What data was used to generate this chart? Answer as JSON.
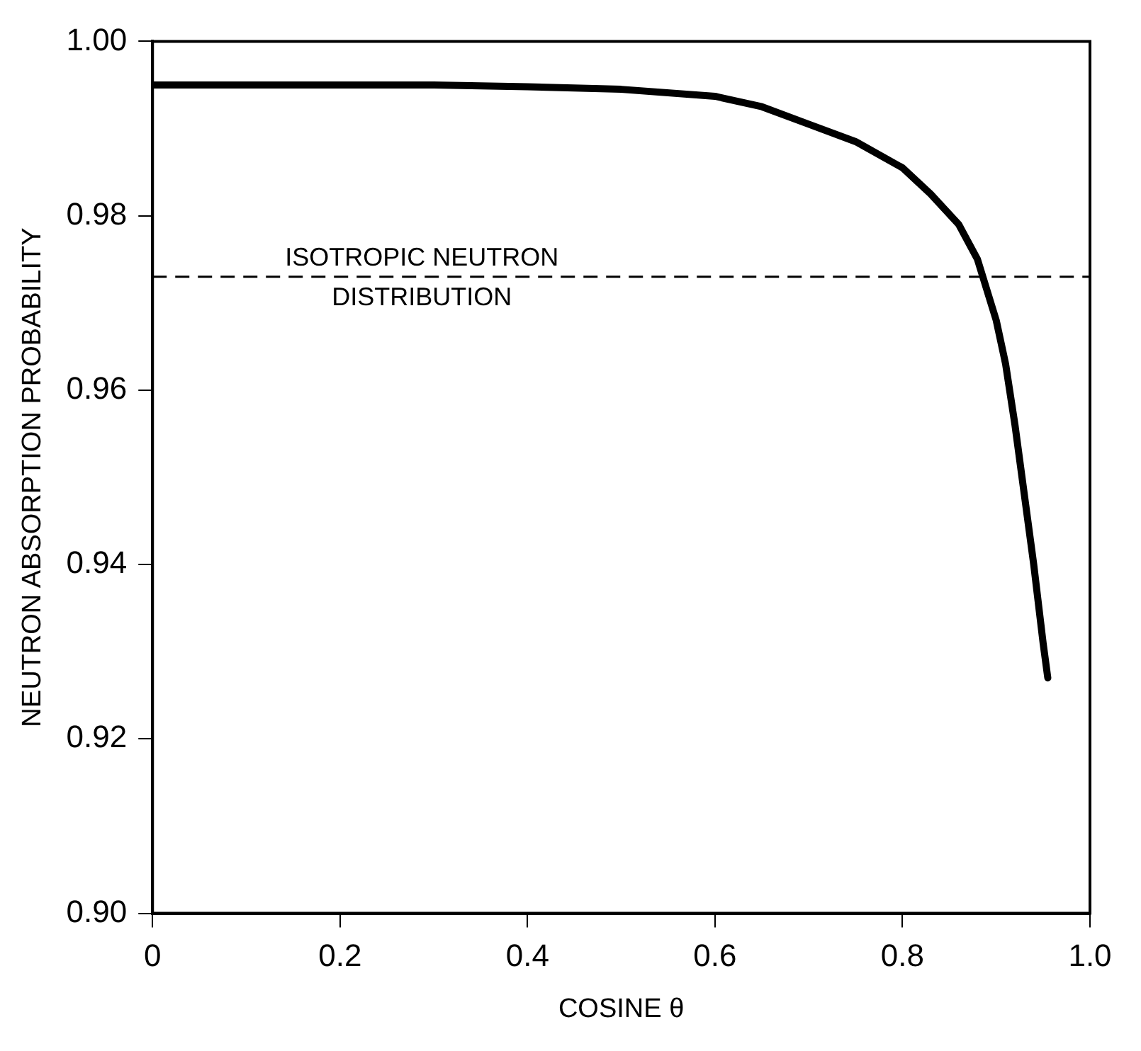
{
  "chart_data": {
    "type": "line",
    "xlabel": "COSINE θ",
    "ylabel": "NEUTRON ABSORPTION PROBABILITY",
    "x": [
      0,
      0.1,
      0.2,
      0.3,
      0.4,
      0.5,
      0.6,
      0.65,
      0.7,
      0.75,
      0.8,
      0.83,
      0.86,
      0.88,
      0.9,
      0.91,
      0.92,
      0.93,
      0.94,
      0.95,
      0.955
    ],
    "series": [
      {
        "color": "#000000",
        "values": [
          0.995,
          0.995,
          0.995,
          0.995,
          0.9948,
          0.9945,
          0.9937,
          0.9925,
          0.9905,
          0.9885,
          0.9855,
          0.9825,
          0.979,
          0.975,
          0.968,
          0.963,
          0.956,
          0.948,
          0.94,
          0.931,
          0.927
        ]
      }
    ],
    "xlim": [
      0,
      1
    ],
    "ylim": [
      0.9,
      1
    ],
    "xticks": [
      {
        "value": 0,
        "label": "0"
      },
      0.2,
      0.4,
      0.6,
      0.8,
      {
        "value": 1,
        "label": "1.0"
      }
    ],
    "yticks": [
      {
        "value": 0.9,
        "label": "0.90"
      },
      {
        "value": 0.92,
        "label": "0.92"
      },
      {
        "value": 0.94,
        "label": "0.94"
      },
      {
        "value": 0.96,
        "label": "0.96"
      },
      {
        "value": 0.98,
        "label": "0.98"
      },
      {
        "value": 1,
        "label": "1.00"
      }
    ],
    "ref_lines": [
      {
        "axis": "y",
        "value": 0.973,
        "label": "ISOTROPIC NEUTRON DISTRIBUTION",
        "color": "#000000",
        "line_style": "dashed"
      }
    ],
    "grid": false,
    "legend": false,
    "marker": "none",
    "line_style": "solid"
  }
}
